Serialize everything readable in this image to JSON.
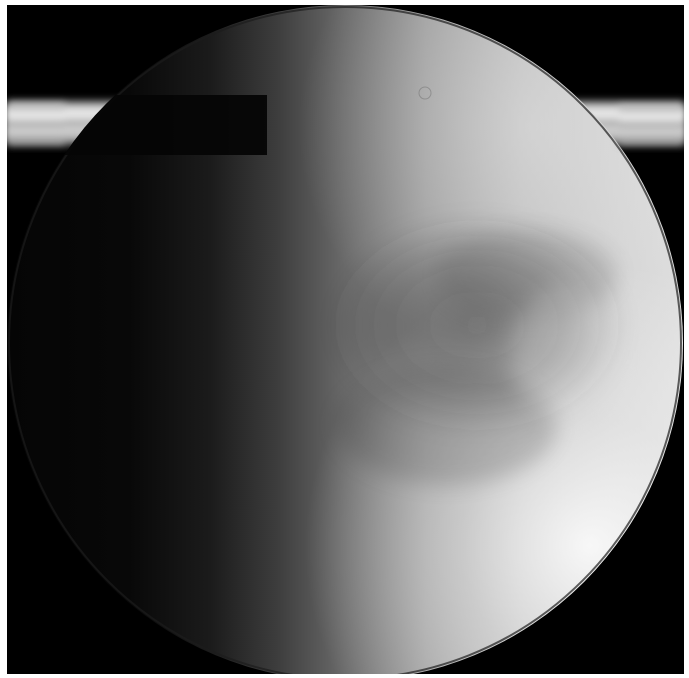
{
  "image": {
    "subject": "titan-moon-with-saturn-rings",
    "colors": {
      "space": "#000000",
      "frame": "#ffffff",
      "limb_bright": "#f6f6f6",
      "terminator_dark": "#060606",
      "ring_light": "#e9e9e9",
      "ring_mid": "#a9a9a9"
    }
  }
}
